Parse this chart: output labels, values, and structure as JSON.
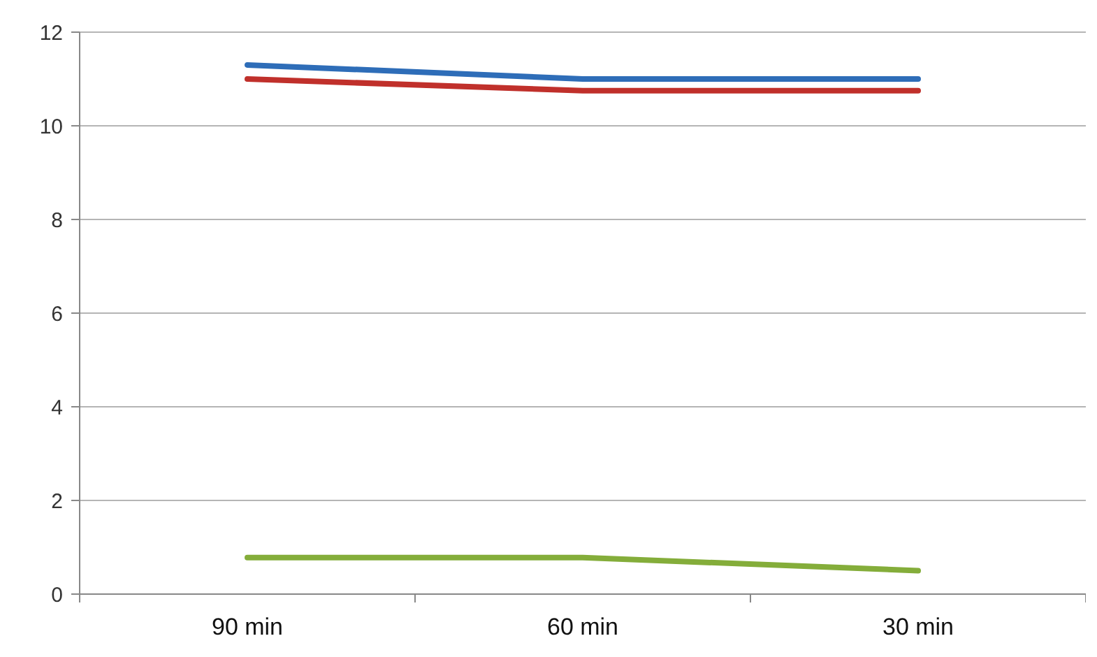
{
  "chart_data": {
    "type": "line",
    "categories": [
      "90 min",
      "60 min",
      "30 min"
    ],
    "series": [
      {
        "color": "#2e6db8",
        "values": [
          11.3,
          11.0,
          11.0
        ]
      },
      {
        "color": "#c0302b",
        "values": [
          11.0,
          10.75,
          10.75
        ]
      },
      {
        "color": "#84ad3a",
        "values": [
          0.78,
          0.78,
          0.5
        ]
      }
    ],
    "ylim": [
      0,
      12
    ],
    "yticks": [
      0,
      2,
      4,
      6,
      8,
      10,
      12
    ],
    "grid": "y"
  }
}
